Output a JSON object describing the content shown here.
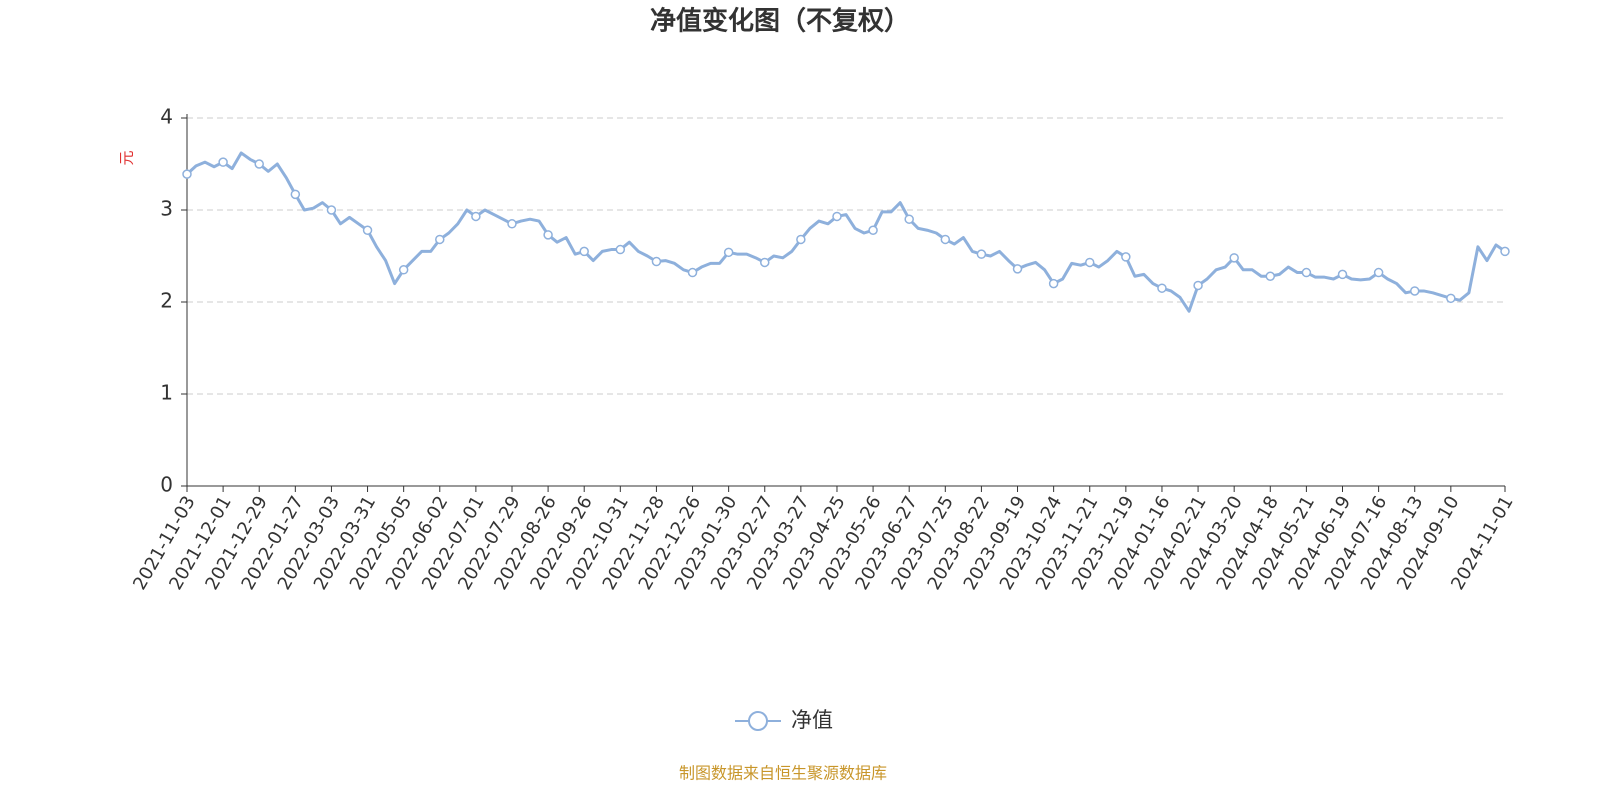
{
  "chart_data": {
    "type": "line",
    "title": "净值变化图（不复权）",
    "y_label": "元",
    "source": "制图数据来自恒生聚源数据库",
    "legend": "bottom",
    "grid": true,
    "marker": "circle",
    "ylim": [
      0,
      4
    ],
    "yticks": [
      0,
      1,
      2,
      3,
      4
    ],
    "categories": [
      "2021-11-03",
      null,
      null,
      null,
      "2021-12-01",
      null,
      null,
      null,
      "2021-12-29",
      null,
      null,
      null,
      "2022-01-27",
      null,
      null,
      null,
      "2022-03-03",
      null,
      null,
      null,
      "2022-03-31",
      null,
      null,
      null,
      "2022-05-05",
      null,
      null,
      null,
      "2022-06-02",
      null,
      null,
      null,
      "2022-07-01",
      null,
      null,
      null,
      "2022-07-29",
      null,
      null,
      null,
      "2022-08-26",
      null,
      null,
      null,
      "2022-09-26",
      null,
      null,
      null,
      "2022-10-31",
      null,
      null,
      null,
      "2022-11-28",
      null,
      null,
      null,
      "2022-12-26",
      null,
      null,
      null,
      "2023-01-30",
      null,
      null,
      null,
      "2023-02-27",
      null,
      null,
      null,
      "2023-03-27",
      null,
      null,
      null,
      "2023-04-25",
      null,
      null,
      null,
      "2023-05-26",
      null,
      null,
      null,
      "2023-06-27",
      null,
      null,
      null,
      "2023-07-25",
      null,
      null,
      null,
      "2023-08-22",
      null,
      null,
      null,
      "2023-09-19",
      null,
      null,
      null,
      "2023-10-24",
      null,
      null,
      null,
      "2023-11-21",
      null,
      null,
      null,
      "2023-12-19",
      null,
      null,
      null,
      "2024-01-16",
      null,
      null,
      null,
      "2024-02-21",
      null,
      null,
      null,
      "2024-03-20",
      null,
      null,
      null,
      "2024-04-18",
      null,
      null,
      null,
      "2024-05-21",
      null,
      null,
      null,
      "2024-06-19",
      null,
      null,
      null,
      "2024-07-16",
      null,
      null,
      null,
      "2024-08-13",
      null,
      null,
      null,
      "2024-09-10",
      null,
      null,
      null,
      null,
      null,
      "2024-11-01"
    ],
    "series": [
      {
        "name": "净值",
        "color": "#8eb0dc",
        "values": [
          3.39,
          3.48,
          3.52,
          3.47,
          3.52,
          3.45,
          3.62,
          3.55,
          3.5,
          3.42,
          3.5,
          3.35,
          3.17,
          3.0,
          3.02,
          3.08,
          3.0,
          2.85,
          2.92,
          2.85,
          2.78,
          2.6,
          2.45,
          2.2,
          2.35,
          2.45,
          2.55,
          2.55,
          2.68,
          2.75,
          2.85,
          3.0,
          2.93,
          3.0,
          2.95,
          2.9,
          2.85,
          2.88,
          2.9,
          2.88,
          2.73,
          2.65,
          2.7,
          2.52,
          2.55,
          2.45,
          2.55,
          2.57,
          2.57,
          2.65,
          2.55,
          2.5,
          2.44,
          2.45,
          2.42,
          2.35,
          2.32,
          2.38,
          2.42,
          2.42,
          2.54,
          2.52,
          2.52,
          2.48,
          2.43,
          2.5,
          2.48,
          2.55,
          2.68,
          2.8,
          2.88,
          2.85,
          2.93,
          2.95,
          2.8,
          2.75,
          2.78,
          2.98,
          2.98,
          3.08,
          2.9,
          2.8,
          2.78,
          2.75,
          2.68,
          2.63,
          2.7,
          2.55,
          2.52,
          2.5,
          2.55,
          2.45,
          2.36,
          2.4,
          2.43,
          2.35,
          2.2,
          2.25,
          2.42,
          2.4,
          2.43,
          2.38,
          2.45,
          2.55,
          2.49,
          2.28,
          2.3,
          2.2,
          2.15,
          2.12,
          2.05,
          1.9,
          2.18,
          2.25,
          2.35,
          2.38,
          2.48,
          2.35,
          2.35,
          2.28,
          2.28,
          2.3,
          2.38,
          2.32,
          2.32,
          2.27,
          2.27,
          2.25,
          2.3,
          2.25,
          2.24,
          2.25,
          2.32,
          2.25,
          2.2,
          2.1,
          2.12,
          2.12,
          2.1,
          2.07,
          2.04,
          2.02,
          2.1,
          2.6,
          2.45,
          2.62,
          2.55
        ]
      }
    ]
  }
}
